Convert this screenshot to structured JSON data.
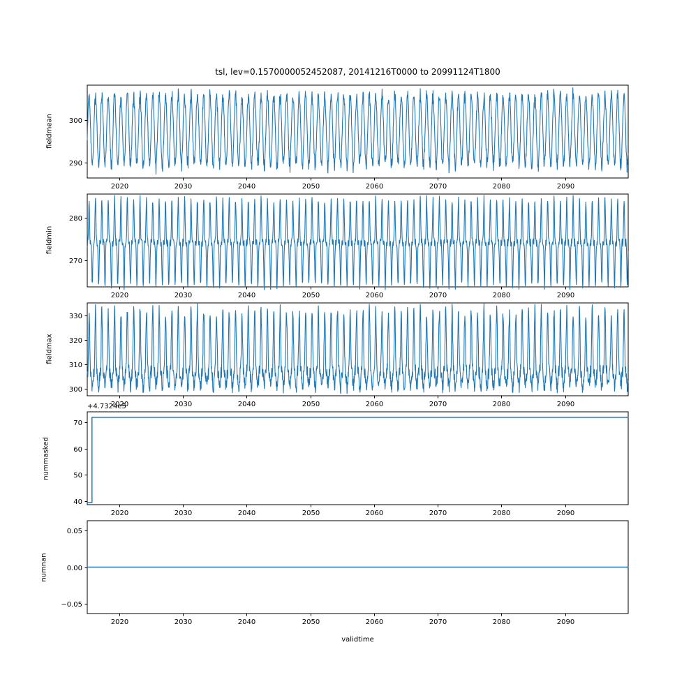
{
  "figure": {
    "title": "tsl, lev=0.1570000052452087, 20141216T0000 to 20991124T1800",
    "xlabel": "validtime",
    "line_color": "#1f77b4",
    "background": "#ffffff",
    "x_range": [
      2014.96,
      2099.9
    ],
    "xtick_values": [
      2020,
      2030,
      2040,
      2050,
      2060,
      2070,
      2080,
      2090
    ],
    "xtick_labels": [
      "2020",
      "2030",
      "2040",
      "2050",
      "2060",
      "2070",
      "2080",
      "2090"
    ]
  },
  "chart_data": [
    {
      "type": "line",
      "ylabel": "fieldmean",
      "ylim": [
        286.4,
        308.3
      ],
      "ytick_values": [
        290,
        300
      ],
      "ytick_labels": [
        "290",
        "300"
      ],
      "generator": "seasonal",
      "params": {
        "mean": 297.6,
        "amp": 8.2,
        "amp_jitter": 1.3,
        "noise": 0.9,
        "points_per_year": 24,
        "seed": 42
      },
      "approx_y_range": [
        288,
        307
      ]
    },
    {
      "type": "line",
      "ylabel": "fieldmin",
      "ylim": [
        263.8,
        285.6
      ],
      "ytick_values": [
        270,
        280
      ],
      "ytick_labels": [
        "270",
        "280"
      ],
      "generator": "spiky",
      "params": {
        "base": 274.2,
        "spike": 10.2,
        "noise": 0.9,
        "points_per_year": 24,
        "seed": 7
      },
      "approx_y_range": [
        264.5,
        285
      ]
    },
    {
      "type": "line",
      "ylabel": "fieldmax",
      "ylim": [
        297.2,
        335.2
      ],
      "ytick_values": [
        300,
        310,
        320,
        330
      ],
      "ytick_labels": [
        "300",
        "310",
        "320",
        "330"
      ],
      "generator": "spikeup",
      "params": {
        "base": 307,
        "noise": 3.0,
        "up": 25,
        "down": 6,
        "points_per_year": 24,
        "seed": 13
      },
      "approx_y_range": [
        299,
        333
      ]
    },
    {
      "type": "line",
      "ylabel": "nummasked",
      "ylim": [
        38.6,
        74.0
      ],
      "ytick_values": [
        40,
        50,
        60,
        70
      ],
      "ytick_labels": [
        "40",
        "50",
        "60",
        "70"
      ],
      "offset_text": "+4.7324e5",
      "generator": "points",
      "points": [
        [
          2014.96,
          39.4
        ],
        [
          2015.7,
          39.4
        ],
        [
          2015.7,
          71.9
        ],
        [
          2099.9,
          71.9
        ]
      ]
    },
    {
      "type": "line",
      "ylabel": "numnan",
      "ylim": [
        -0.0638,
        0.0638
      ],
      "ytick_values": [
        -0.05,
        0,
        0.05
      ],
      "ytick_labels": [
        "−0.05",
        "0.00",
        "0.05"
      ],
      "generator": "points",
      "points": [
        [
          2014.96,
          0
        ],
        [
          2099.9,
          0
        ]
      ]
    }
  ]
}
